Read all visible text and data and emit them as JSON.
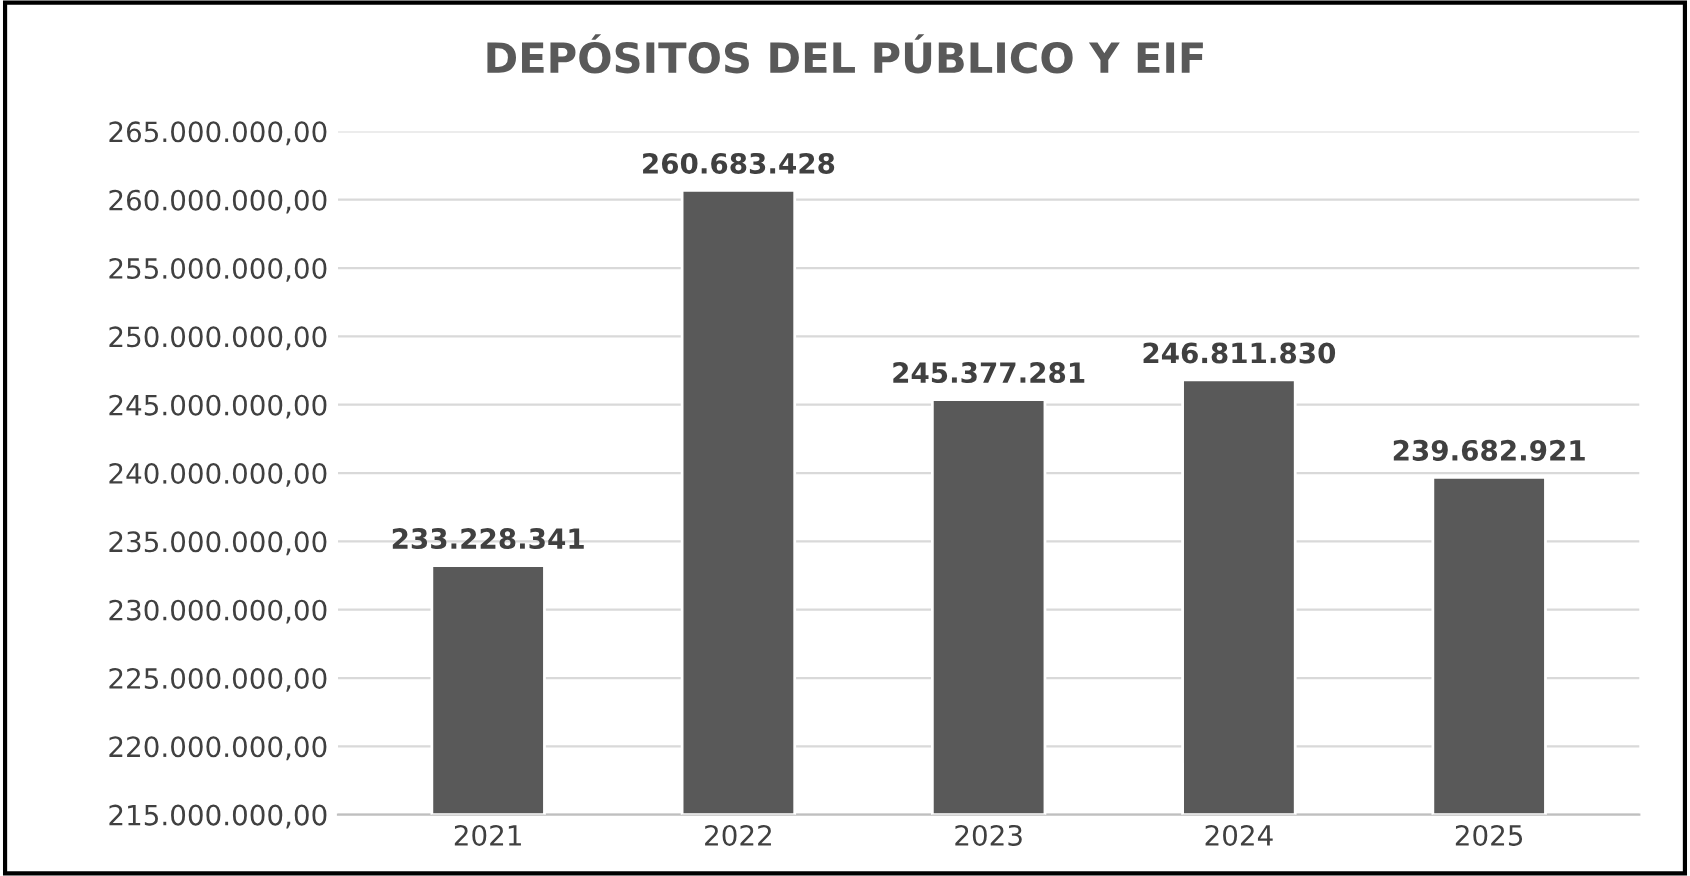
{
  "chart_data": {
    "type": "bar",
    "title": "DEPÓSITOS DEL PÚBLICO Y EIF",
    "categories": [
      "2021",
      "2022",
      "2023",
      "2024",
      "2025"
    ],
    "values": [
      233228341,
      260683428,
      245377281,
      246811830,
      239682921
    ],
    "value_labels": [
      "233.228.341",
      "260.683.428",
      "245.377.281",
      "246.811.830",
      "239.682.921"
    ],
    "color": "#595959",
    "ylim": [
      215000000,
      265000000
    ],
    "yticks": [
      {
        "value": 215000000,
        "label": "215.000.000,00"
      },
      {
        "value": 220000000,
        "label": "220.000.000,00"
      },
      {
        "value": 225000000,
        "label": "225.000.000,00"
      },
      {
        "value": 230000000,
        "label": "230.000.000,00"
      },
      {
        "value": 235000000,
        "label": "235.000.000,00"
      },
      {
        "value": 240000000,
        "label": "240.000.000,00"
      },
      {
        "value": 245000000,
        "label": "245.000.000,00"
      },
      {
        "value": 250000000,
        "label": "250.000.000,00"
      },
      {
        "value": 255000000,
        "label": "255.000.000,00"
      },
      {
        "value": 260000000,
        "label": "260.000.000,00"
      },
      {
        "value": 265000000,
        "label": "265.000.000,00"
      }
    ],
    "grid": "y",
    "legend": false
  }
}
